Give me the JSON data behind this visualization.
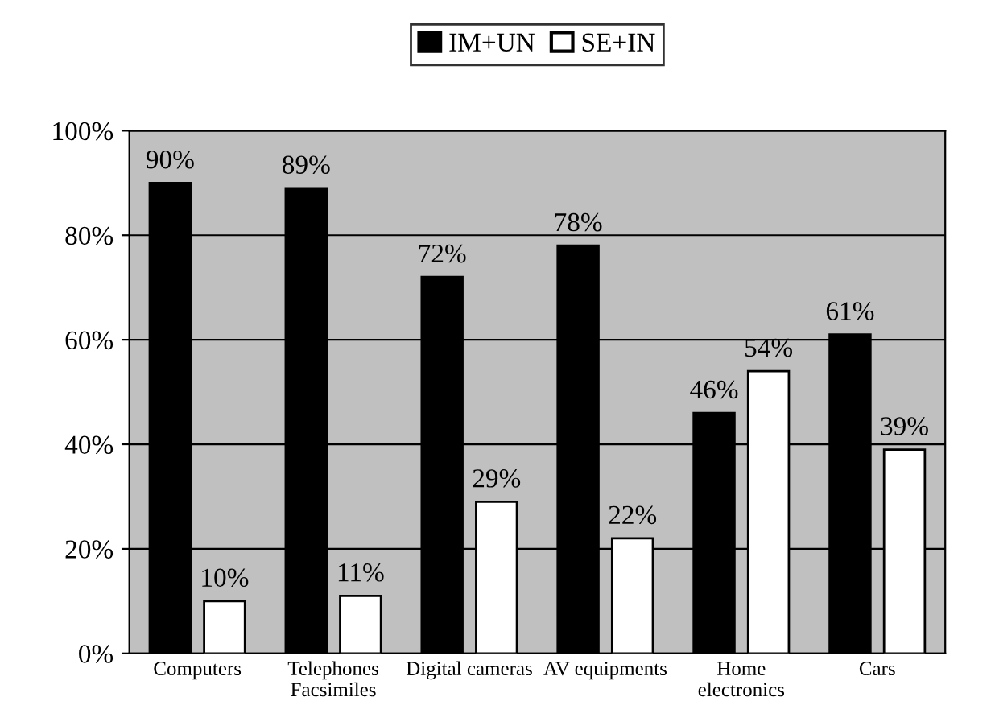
{
  "chart_data": {
    "type": "bar",
    "categories": [
      "Computers",
      "Telephones\nFacsimiles",
      "Digital cameras",
      "AV equipments",
      "Home\nelectronics",
      "Cars"
    ],
    "series": [
      {
        "name": "IM+UN",
        "color": "#000000",
        "values": [
          90,
          89,
          72,
          78,
          46,
          61
        ],
        "value_labels": [
          "90%",
          "89%",
          "72%",
          "78%",
          "46%",
          "61%"
        ]
      },
      {
        "name": "SE+IN",
        "color": "#ffffff",
        "values": [
          10,
          11,
          29,
          22,
          54,
          39
        ],
        "value_labels": [
          "10%",
          "11%",
          "29%",
          "22%",
          "54%",
          "39%"
        ]
      }
    ],
    "ylim": [
      0,
      100
    ],
    "yticks": [
      {
        "value": 0,
        "label": "0%"
      },
      {
        "value": 20,
        "label": "20%"
      },
      {
        "value": 40,
        "label": "40%"
      },
      {
        "value": 60,
        "label": "60%"
      },
      {
        "value": 80,
        "label": "80%"
      },
      {
        "value": 100,
        "label": "100%"
      }
    ],
    "grid": "y",
    "legend": "top"
  }
}
